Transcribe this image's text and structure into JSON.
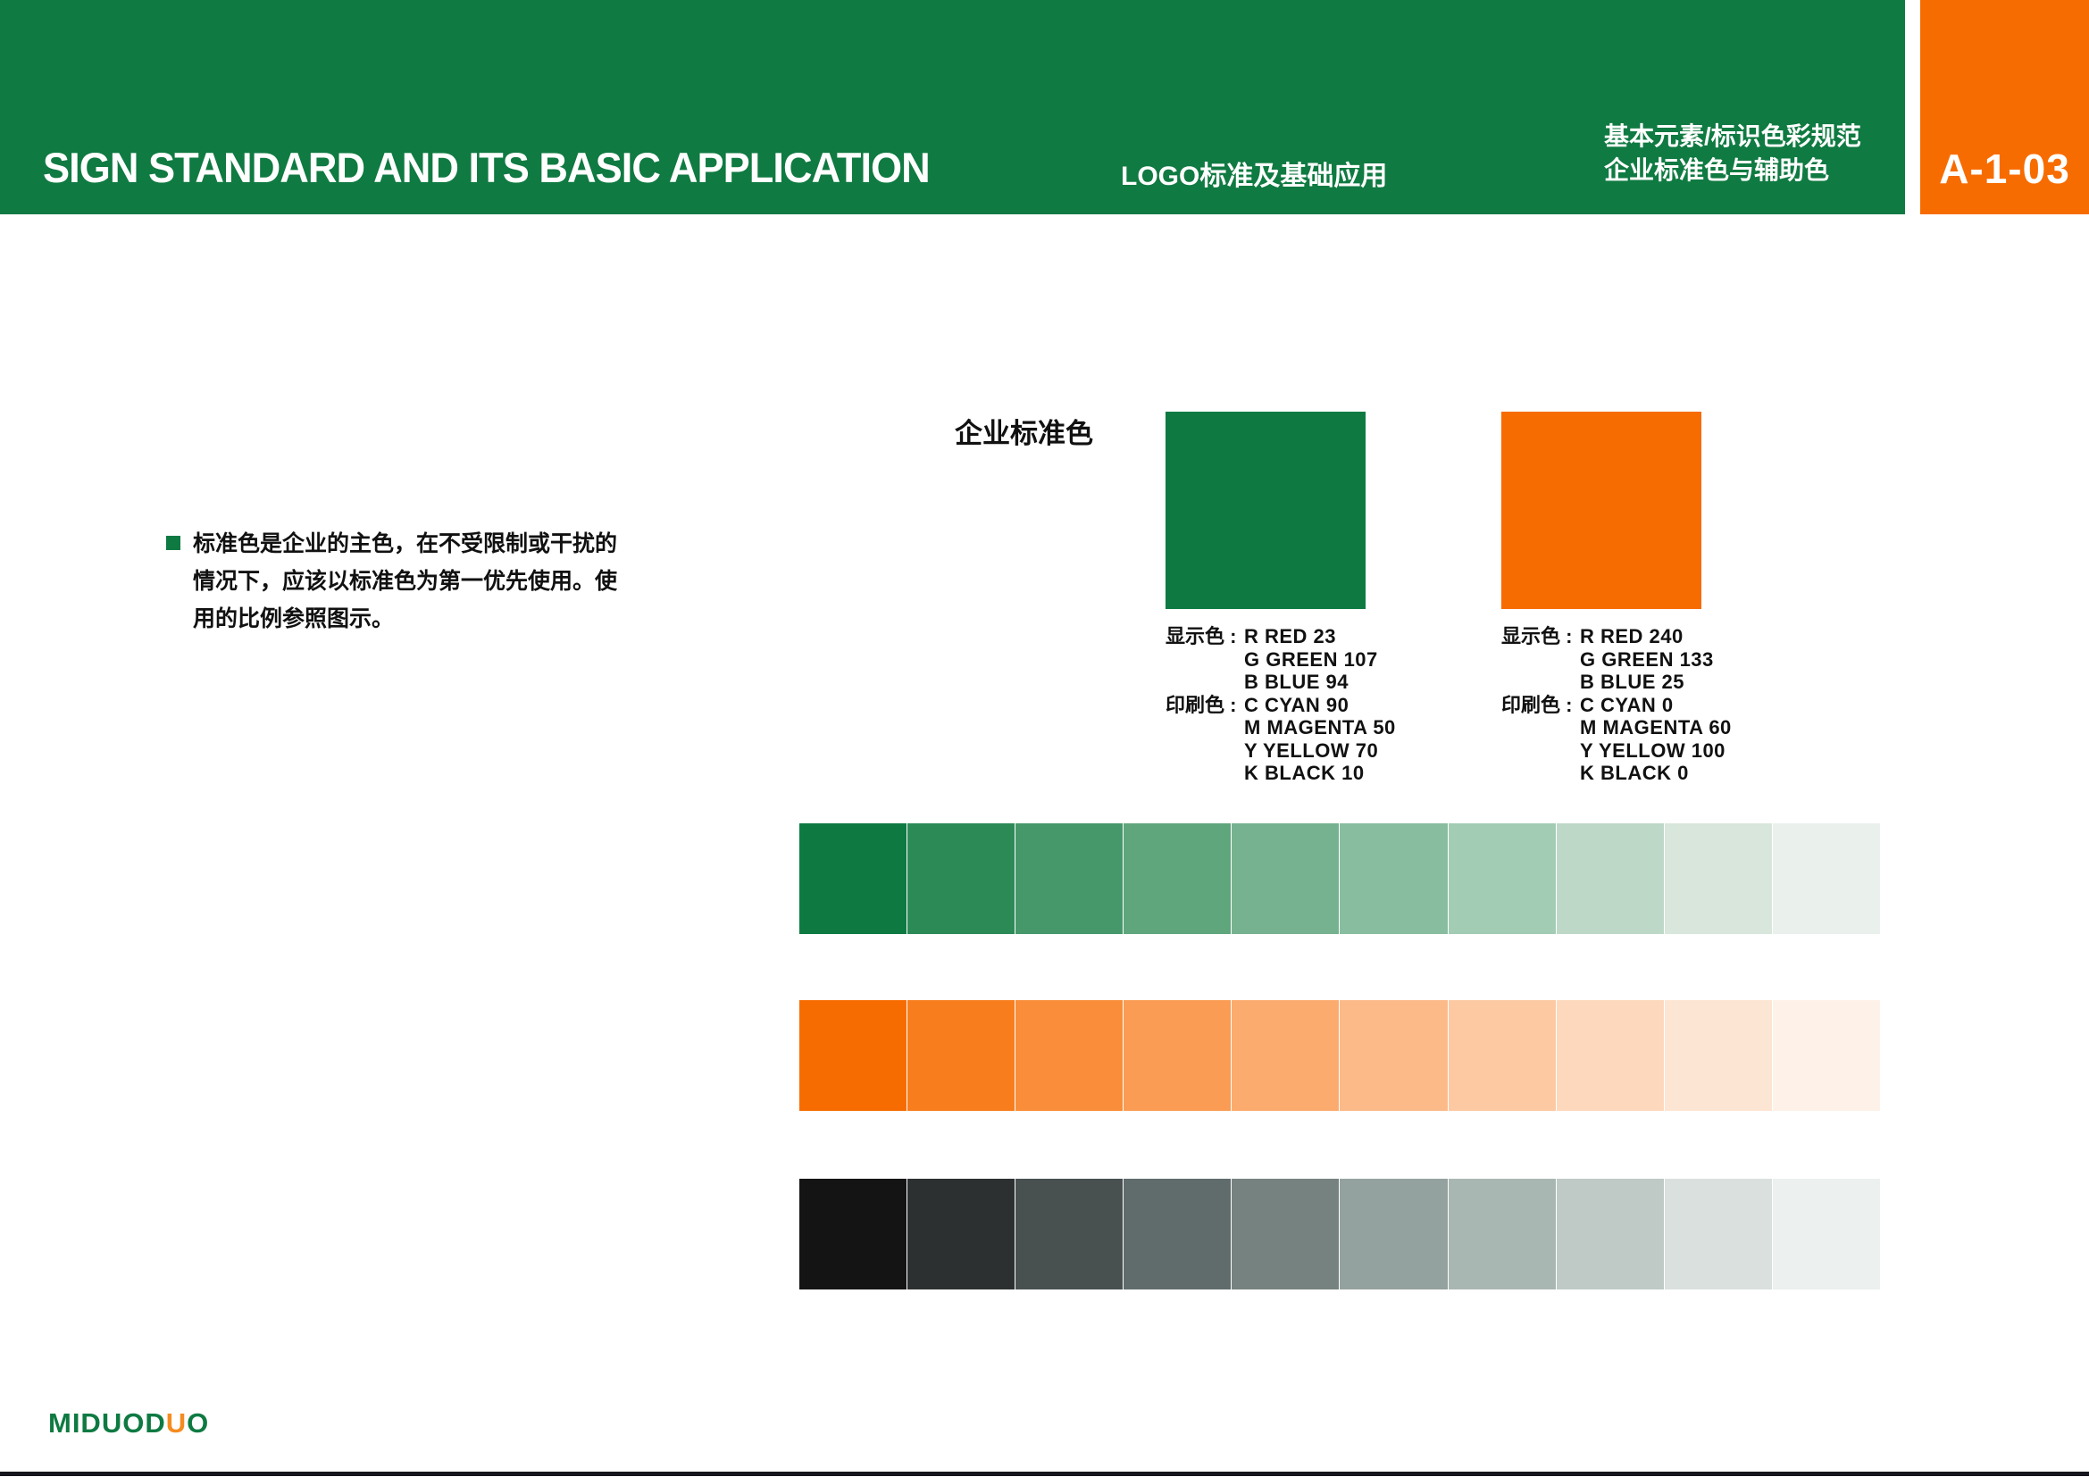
{
  "header": {
    "title_en": "SIGN STANDARD AND ITS BASIC APPLICATION",
    "title_zh": "LOGO标准及基础应用",
    "section_line1": "基本元素/标识色彩规范",
    "section_line2": "企业标准色与辅助色",
    "page_code": "A-1-03"
  },
  "colors": {
    "header_green": "#0f7a41",
    "brand_green": "#0e7a42",
    "brand_orange": "#f76c00",
    "bullet_green": "#0e7a42",
    "footer_rule": "#16161e"
  },
  "intro": {
    "lines": [
      "标准色是企业的主色，在不受限制或干扰的",
      "情况下，应该以标准色为第一优先使用。使",
      "用的比例参照图示。"
    ]
  },
  "standard_colors": {
    "heading": "企业标准色",
    "swatches": [
      {
        "name": "corporate-green",
        "hex": "#0e7a42",
        "rows": [
          {
            "label": "显示色 :",
            "value": "R  RED  23"
          },
          {
            "label": "",
            "value": "G  GREEN  107"
          },
          {
            "label": "",
            "value": "B  BLUE  94"
          },
          {
            "label": "印刷色 :",
            "value": "C  CYAN  90"
          },
          {
            "label": "",
            "value": "M  MAGENTA  50"
          },
          {
            "label": "",
            "value": "Y  YELLOW  70"
          },
          {
            "label": "",
            "value": "K  BLACK  10"
          }
        ]
      },
      {
        "name": "corporate-orange",
        "hex": "#f76c00",
        "rows": [
          {
            "label": "显示色 :",
            "value": "R  RED  240"
          },
          {
            "label": "",
            "value": "G  GREEN  133"
          },
          {
            "label": "",
            "value": "B  BLUE  25"
          },
          {
            "label": "印刷色 :",
            "value": "C  CYAN  0"
          },
          {
            "label": "",
            "value": "M  MAGENTA  60"
          },
          {
            "label": "",
            "value": "Y  YELLOW  100"
          },
          {
            "label": "",
            "value": "K  BLACK  0"
          }
        ]
      }
    ]
  },
  "tint_scales": [
    {
      "name": "green-tints",
      "steps": [
        "#0e7a42",
        "#2c8a57",
        "#46986a",
        "#60a67d",
        "#76b28f",
        "#88bda0",
        "#a3ccb4",
        "#bed8c8",
        "#d8e6dc",
        "#eaf1ec"
      ]
    },
    {
      "name": "orange-tints",
      "steps": [
        "#f76c00",
        "#f87d1d",
        "#f98d39",
        "#fa9c54",
        "#fbab6e",
        "#fbba88",
        "#fcc9a3",
        "#fdd8bd",
        "#fde5d3",
        "#fef2e8"
      ]
    },
    {
      "name": "black-tints",
      "steps": [
        "#141414",
        "#2c3030",
        "#485050",
        "#5f6c6b",
        "#768280",
        "#93a29e",
        "#a9b7b3",
        "#bfcac7",
        "#dae0de",
        "#ecf0ee"
      ]
    }
  ],
  "logo": {
    "segments": [
      {
        "text": "MIDUOD",
        "hex": "#0e7a42"
      },
      {
        "text": "U",
        "hex": "#f68b1f"
      },
      {
        "text": "O",
        "hex": "#0e7a42"
      }
    ]
  }
}
